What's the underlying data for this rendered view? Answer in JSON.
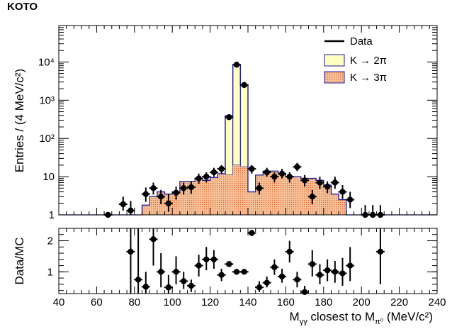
{
  "experiment_label": "KOTO",
  "colors": {
    "k2pi_fill": "#ffffc0",
    "k3pi_fill": "#f4b183",
    "mc_line": "#1a1aa6",
    "data": "#000000"
  },
  "chart_data": [
    {
      "type": "histogram",
      "panel": "main",
      "ylabel": "Entries / (4 MeV/c²)",
      "yscale": "log",
      "ylim": [
        1,
        90000
      ],
      "xlim": [
        40,
        240
      ],
      "grid": false,
      "legend_position": "top-right",
      "legend": [
        {
          "label": "Data",
          "style": "line"
        },
        {
          "label": "K → 2π",
          "style": "fill-yellow"
        },
        {
          "label": "K → 3π",
          "style": "fill-orange"
        }
      ],
      "y_tick_labels": [
        "1",
        "10",
        "10²",
        "10³",
        "10⁴"
      ],
      "bin_edges": [
        80,
        84,
        88,
        92,
        96,
        100,
        104,
        108,
        112,
        116,
        120,
        124,
        128,
        132,
        136,
        140,
        144,
        148,
        152,
        156,
        160,
        164,
        168,
        172,
        176,
        180,
        184,
        188,
        192,
        196
      ],
      "series": [
        {
          "name": "K → 3π",
          "values": [
            1,
            1.8,
            3,
            4,
            3.5,
            4,
            7.5,
            7.5,
            9,
            8,
            9.5,
            12,
            11,
            20,
            18,
            4,
            11,
            14,
            14,
            12,
            10,
            10,
            9,
            9,
            8,
            6,
            3.5,
            2.5,
            1
          ]
        },
        {
          "name": "K → 2π",
          "values": [
            0,
            0,
            0,
            0,
            0,
            0,
            0,
            0,
            0,
            0,
            0,
            0,
            380,
            8500,
            2500,
            0,
            0,
            0,
            0,
            0,
            0,
            0,
            0,
            0,
            0,
            0,
            0,
            0,
            0
          ]
        }
      ],
      "data_points": [
        {
          "x": 66,
          "y": 1.0,
          "lo": 1.0,
          "hi": 1.0
        },
        {
          "x": 74,
          "y": 1.9,
          "lo": 1.3,
          "hi": 3.0
        },
        {
          "x": 78,
          "y": 1.3,
          "lo": 1.0,
          "hi": 2.3
        },
        {
          "x": 86,
          "y": 3.5,
          "lo": 2.2,
          "hi": 5.2
        },
        {
          "x": 90,
          "y": 5.0,
          "lo": 3.4,
          "hi": 7.0
        },
        {
          "x": 94,
          "y": 3.0,
          "lo": 1.9,
          "hi": 4.5
        },
        {
          "x": 98,
          "y": 2.0,
          "lo": 1.2,
          "hi": 3.5
        },
        {
          "x": 102,
          "y": 3.8,
          "lo": 2.5,
          "hi": 5.5
        },
        {
          "x": 106,
          "y": 5.0,
          "lo": 3.4,
          "hi": 7.0
        },
        {
          "x": 110,
          "y": 5.3,
          "lo": 3.6,
          "hi": 7.5
        },
        {
          "x": 114,
          "y": 9.0,
          "lo": 6.5,
          "hi": 12.0
        },
        {
          "x": 118,
          "y": 10.0,
          "lo": 7.0,
          "hi": 13.0
        },
        {
          "x": 122,
          "y": 13.0,
          "lo": 10.0,
          "hi": 17.0
        },
        {
          "x": 126,
          "y": 16.0,
          "lo": 12.0,
          "hi": 20.0
        },
        {
          "x": 130,
          "y": 360,
          "lo": 340,
          "hi": 380
        },
        {
          "x": 134,
          "y": 8500,
          "lo": 8300,
          "hi": 8700
        },
        {
          "x": 138,
          "y": 2500,
          "lo": 2400,
          "hi": 2600
        },
        {
          "x": 142,
          "y": 16.0,
          "lo": 12.0,
          "hi": 20.0
        },
        {
          "x": 146,
          "y": 5.0,
          "lo": 3.4,
          "hi": 7.0
        },
        {
          "x": 150,
          "y": 13.0,
          "lo": 10.0,
          "hi": 17.0
        },
        {
          "x": 154,
          "y": 10.0,
          "lo": 7.0,
          "hi": 13.0
        },
        {
          "x": 158,
          "y": 12.0,
          "lo": 9.0,
          "hi": 16.0
        },
        {
          "x": 162,
          "y": 10.0,
          "lo": 7.0,
          "hi": 13.0
        },
        {
          "x": 166,
          "y": 18.0,
          "lo": 14.0,
          "hi": 23.0
        },
        {
          "x": 170,
          "y": 8.0,
          "lo": 5.5,
          "hi": 11.0
        },
        {
          "x": 174,
          "y": 3.0,
          "lo": 1.9,
          "hi": 4.5
        },
        {
          "x": 178,
          "y": 7.0,
          "lo": 4.8,
          "hi": 10.0
        },
        {
          "x": 182,
          "y": 5.5,
          "lo": 3.7,
          "hi": 7.5
        },
        {
          "x": 186,
          "y": 7.0,
          "lo": 4.8,
          "hi": 10.0
        },
        {
          "x": 190,
          "y": 4.0,
          "lo": 2.6,
          "hi": 6.0
        },
        {
          "x": 194,
          "y": 2.5,
          "lo": 1.5,
          "hi": 4.0
        },
        {
          "x": 202,
          "y": 1.0,
          "lo": 1.0,
          "hi": 1.8
        },
        {
          "x": 206,
          "y": 1.0,
          "lo": 1.0,
          "hi": 1.8
        },
        {
          "x": 210,
          "y": 1.0,
          "lo": 1.0,
          "hi": 1.8
        }
      ]
    },
    {
      "type": "scatter",
      "panel": "ratio",
      "ylabel": "Data/MC",
      "xlabel": "M_γγ closest to M_π⁰ (MeV/c²)",
      "xlim": [
        40,
        240
      ],
      "ylim": [
        0.3,
        2.4
      ],
      "y_ticks": [
        1,
        2
      ],
      "x_ticks": [
        40,
        60,
        80,
        100,
        120,
        140,
        160,
        180,
        200,
        220,
        240
      ],
      "points": [
        {
          "x": 78,
          "y": 1.65,
          "lo": 0.3,
          "hi": 2.4
        },
        {
          "x": 82,
          "y": 0.75,
          "lo": 0.3,
          "hi": 2.4
        },
        {
          "x": 86,
          "y": 0.52,
          "lo": 0.3,
          "hi": 1.0
        },
        {
          "x": 90,
          "y": 2.05,
          "lo": 1.2,
          "hi": 2.4
        },
        {
          "x": 94,
          "y": 1.0,
          "lo": 0.5,
          "hi": 1.6
        },
        {
          "x": 98,
          "y": 0.5,
          "lo": 0.3,
          "hi": 0.9
        },
        {
          "x": 102,
          "y": 1.0,
          "lo": 0.6,
          "hi": 1.5
        },
        {
          "x": 106,
          "y": 0.7,
          "lo": 0.45,
          "hi": 1.0
        },
        {
          "x": 110,
          "y": 0.55,
          "lo": 0.35,
          "hi": 0.75
        },
        {
          "x": 114,
          "y": 1.2,
          "lo": 0.85,
          "hi": 1.55
        },
        {
          "x": 118,
          "y": 1.4,
          "lo": 1.05,
          "hi": 1.8
        },
        {
          "x": 122,
          "y": 1.4,
          "lo": 1.1,
          "hi": 1.7
        },
        {
          "x": 126,
          "y": 0.9,
          "lo": 0.7,
          "hi": 1.1
        },
        {
          "x": 130,
          "y": 1.25,
          "lo": 1.2,
          "hi": 1.3
        },
        {
          "x": 134,
          "y": 1.0,
          "lo": 0.98,
          "hi": 1.02
        },
        {
          "x": 138,
          "y": 1.0,
          "lo": 0.97,
          "hi": 1.03
        },
        {
          "x": 142,
          "y": 2.25,
          "lo": 2.15,
          "hi": 2.35
        },
        {
          "x": 146,
          "y": 0.5,
          "lo": 0.35,
          "hi": 0.7
        },
        {
          "x": 150,
          "y": 0.65,
          "lo": 0.5,
          "hi": 0.85
        },
        {
          "x": 154,
          "y": 1.15,
          "lo": 0.9,
          "hi": 1.4
        },
        {
          "x": 158,
          "y": 0.85,
          "lo": 0.65,
          "hi": 1.1
        },
        {
          "x": 162,
          "y": 1.65,
          "lo": 1.3,
          "hi": 2.0
        },
        {
          "x": 166,
          "y": 0.75,
          "lo": 0.5,
          "hi": 1.0
        },
        {
          "x": 170,
          "y": 0.35,
          "lo": 0.3,
          "hi": 0.55
        },
        {
          "x": 174,
          "y": 1.25,
          "lo": 0.85,
          "hi": 1.7
        },
        {
          "x": 178,
          "y": 0.9,
          "lo": 0.6,
          "hi": 1.25
        },
        {
          "x": 182,
          "y": 1.05,
          "lo": 0.7,
          "hi": 1.4
        },
        {
          "x": 186,
          "y": 1.0,
          "lo": 0.65,
          "hi": 1.35
        },
        {
          "x": 190,
          "y": 0.95,
          "lo": 0.55,
          "hi": 1.45
        },
        {
          "x": 194,
          "y": 1.2,
          "lo": 0.7,
          "hi": 1.8
        },
        {
          "x": 210,
          "y": 1.65,
          "lo": 0.6,
          "hi": 2.4
        }
      ]
    }
  ]
}
